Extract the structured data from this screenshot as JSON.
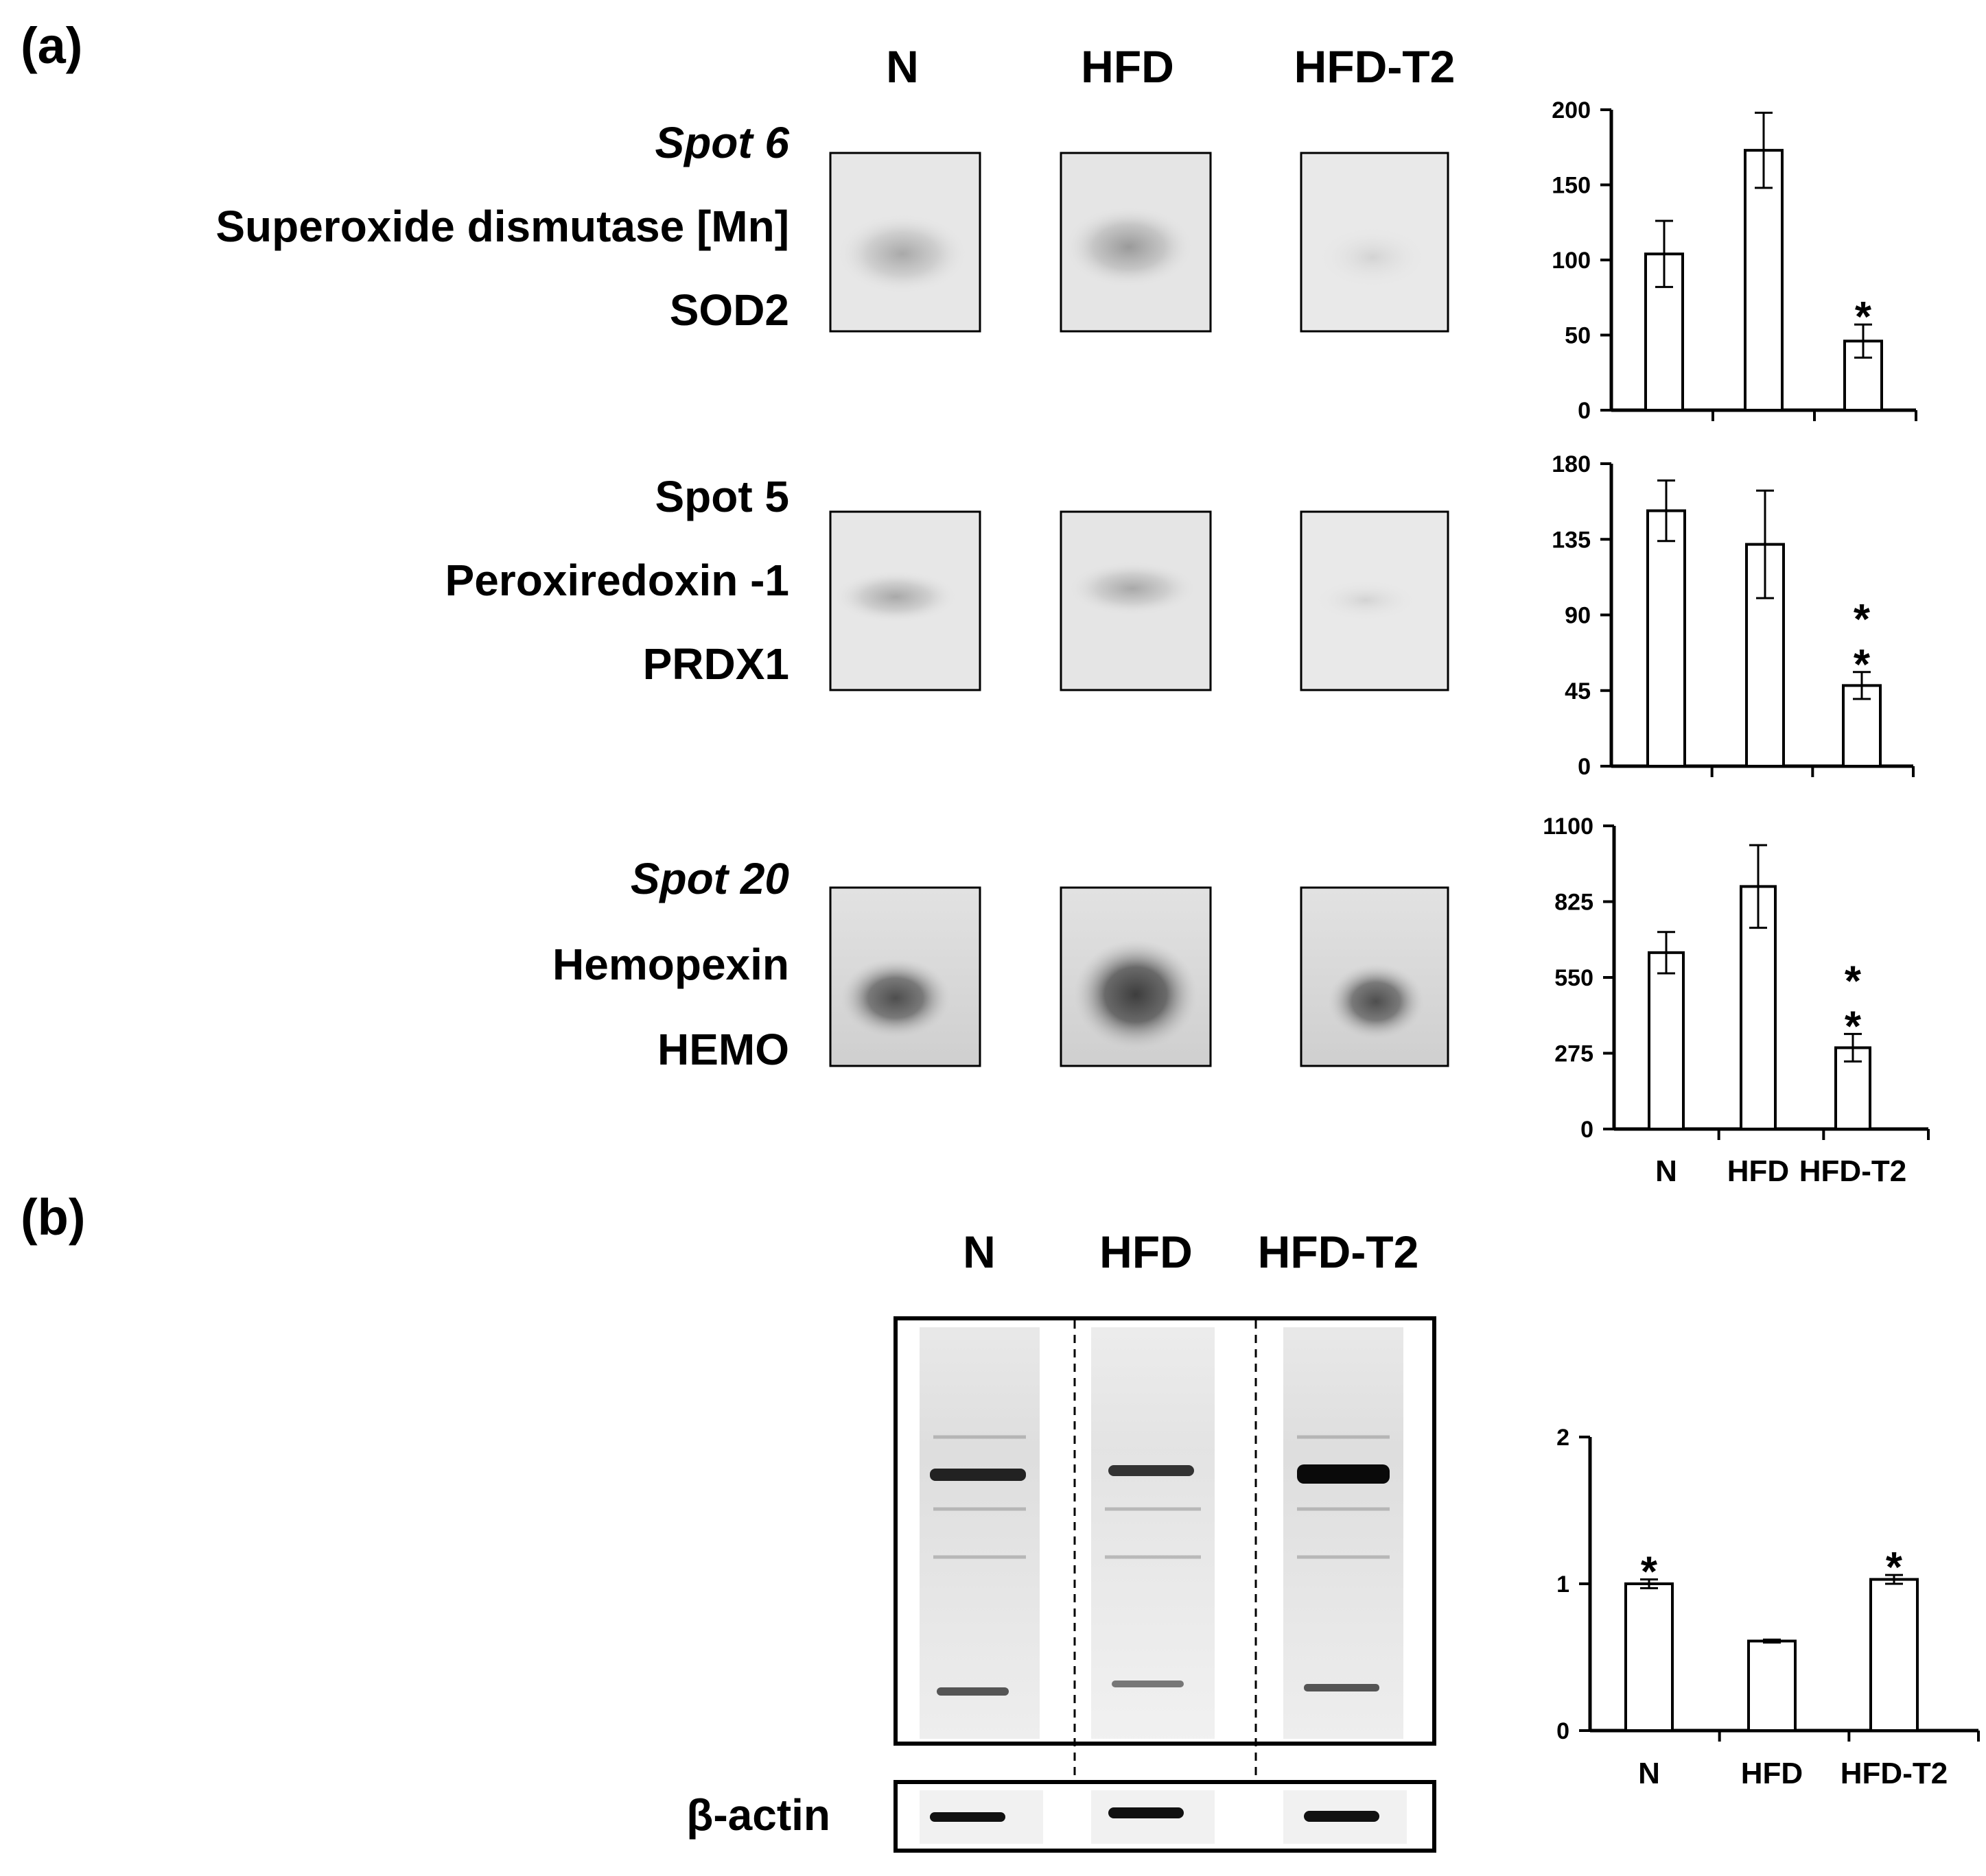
{
  "panels": {
    "a": "(a)",
    "b": "(b)"
  },
  "groups": [
    "N",
    "HFD",
    "HFD-T2"
  ],
  "panel_a_rows": [
    {
      "spot": "Spot 6",
      "spot_italic": true,
      "protein": "Superoxide dismutase [Mn]",
      "gene": "SOD2"
    },
    {
      "spot": "Spot 5",
      "spot_italic": false,
      "protein": "Peroxiredoxin -1",
      "gene": "PRDX1"
    },
    {
      "spot": "Spot 20",
      "spot_italic": true,
      "protein": "Hemopexin",
      "gene": "HEMO"
    }
  ],
  "blot": {
    "loading_label": "β-actin"
  },
  "chart_data": [
    {
      "type": "bar",
      "categories": [
        "N",
        "HFD",
        "HFD-T2"
      ],
      "values": [
        104,
        173,
        46
      ],
      "errors": [
        22,
        25,
        11
      ],
      "annotations": [
        "",
        "",
        "*"
      ],
      "ylim": [
        0,
        200
      ],
      "yticks": [
        0,
        50,
        100,
        150,
        200
      ]
    },
    {
      "type": "bar",
      "categories": [
        "N",
        "HFD",
        "HFD-T2"
      ],
      "values": [
        152,
        132,
        48
      ],
      "errors": [
        18,
        32,
        8
      ],
      "annotations": [
        "",
        "",
        "**"
      ],
      "ylim": [
        0,
        180
      ],
      "yticks": [
        0,
        45,
        90,
        135,
        180
      ]
    },
    {
      "type": "bar",
      "categories": [
        "N",
        "HFD",
        "HFD-T2"
      ],
      "values": [
        640,
        880,
        295
      ],
      "errors": [
        75,
        150,
        50
      ],
      "annotations": [
        "",
        "",
        "**"
      ],
      "ylim": [
        0,
        1100
      ],
      "yticks": [
        0,
        275,
        550,
        825,
        1100
      ]
    },
    {
      "type": "bar",
      "categories": [
        "N",
        "HFD",
        "HFD-T2"
      ],
      "values": [
        1.0,
        0.61,
        1.03
      ],
      "errors": [
        0.03,
        0.01,
        0.03
      ],
      "annotations": [
        "*",
        "",
        "*"
      ],
      "ylim": [
        0,
        2
      ],
      "yticks": [
        0,
        1,
        2
      ]
    }
  ]
}
